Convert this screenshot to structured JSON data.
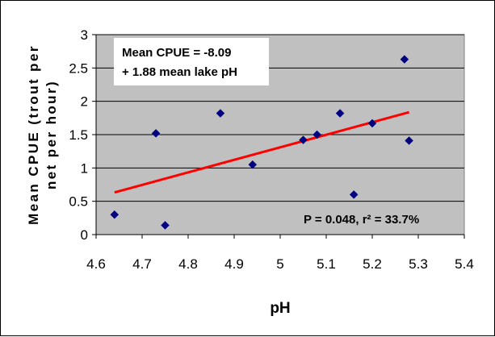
{
  "chart_data": {
    "type": "scatter",
    "xlabel": "pH",
    "ylabel_lines": [
      "Mean CPUE (trout per",
      "net per hour)"
    ],
    "xlim": [
      4.6,
      5.4
    ],
    "ylim": [
      0,
      3
    ],
    "x_ticks": [
      "4.6",
      "4.7",
      "4.8",
      "4.9",
      "5",
      "5.1",
      "5.2",
      "5.3",
      "5.4"
    ],
    "y_ticks": [
      "0",
      "0.5",
      "1",
      "1.5",
      "2",
      "2.5",
      "3"
    ],
    "grid": true,
    "plot_background": "#c0c0c0",
    "series": [
      {
        "color": "#000080",
        "marker": "diamond",
        "points": [
          {
            "x": 4.64,
            "y": 0.3
          },
          {
            "x": 4.73,
            "y": 1.52
          },
          {
            "x": 4.75,
            "y": 0.14
          },
          {
            "x": 4.87,
            "y": 1.82
          },
          {
            "x": 4.94,
            "y": 1.05
          },
          {
            "x": 5.05,
            "y": 1.42
          },
          {
            "x": 5.08,
            "y": 1.5
          },
          {
            "x": 5.13,
            "y": 1.82
          },
          {
            "x": 5.16,
            "y": 0.6
          },
          {
            "x": 5.2,
            "y": 1.67
          },
          {
            "x": 5.27,
            "y": 2.63
          },
          {
            "x": 5.28,
            "y": 1.41
          }
        ]
      }
    ],
    "trendline": {
      "color": "#ff0000",
      "intercept": -8.09,
      "slope": 1.88,
      "x_range": [
        4.64,
        5.28
      ]
    },
    "annotations": {
      "equation_line1": "Mean CPUE = -8.09",
      "equation_line2": "+ 1.88 mean lake pH",
      "stats": "P = 0.048, r² = 33.7%"
    }
  }
}
